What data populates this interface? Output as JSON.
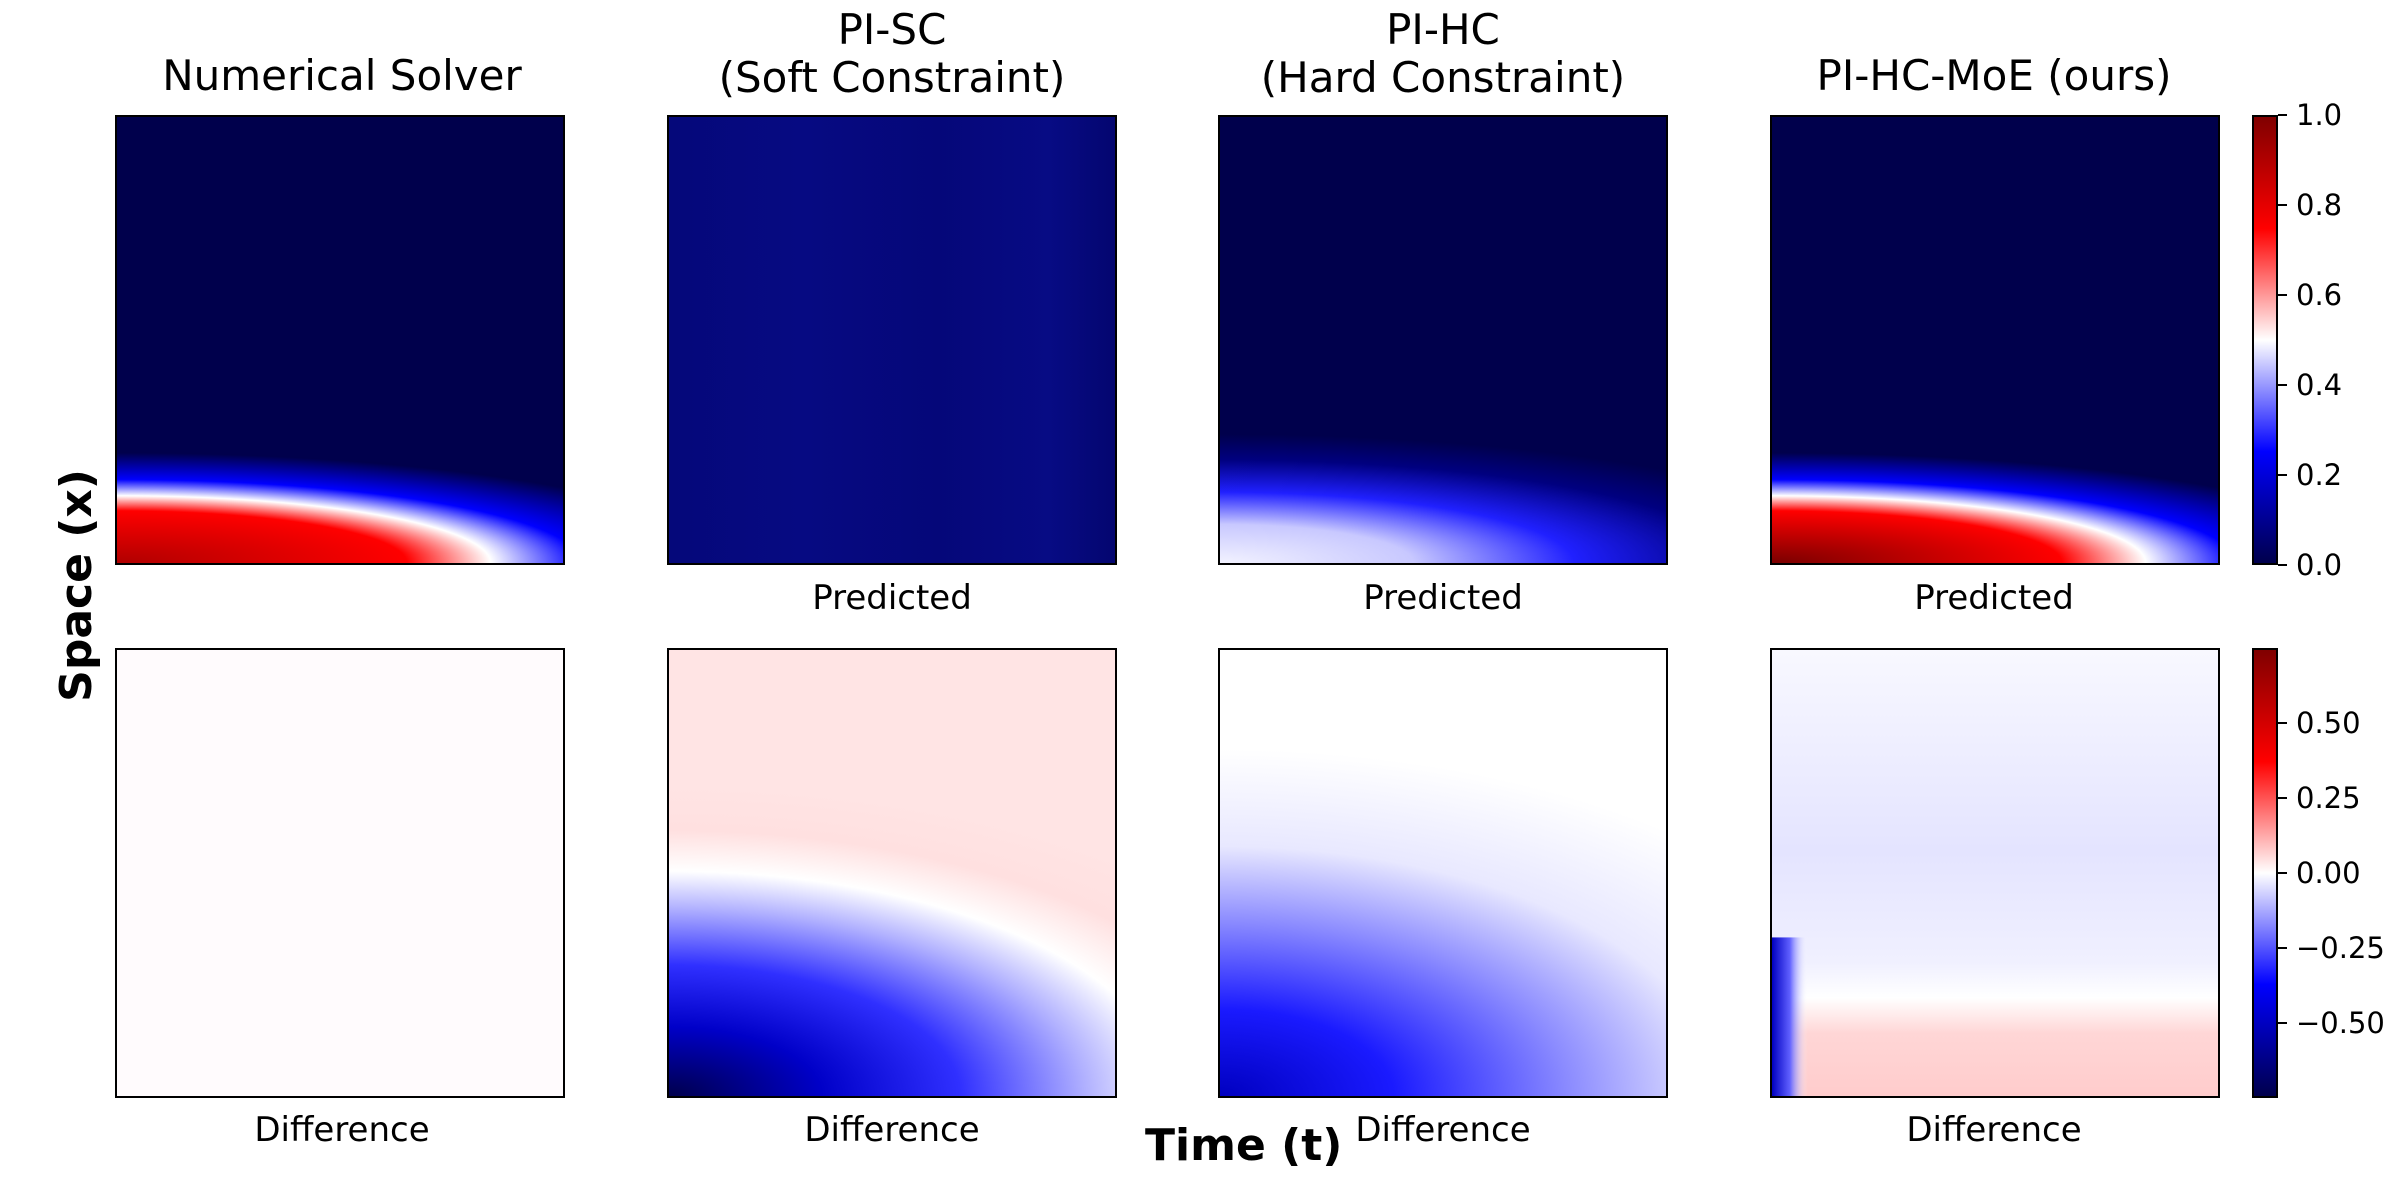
{
  "chart_data": {
    "type": "heatmap",
    "columns": [
      {
        "title_lines": [
          "Numerical Solver"
        ],
        "top_label": "",
        "bottom_label": "Difference"
      },
      {
        "title_lines": [
          "PI-SC",
          "(Soft Constraint)"
        ],
        "top_label": "Predicted",
        "bottom_label": "Difference"
      },
      {
        "title_lines": [
          "PI-HC",
          "(Hard Constraint)"
        ],
        "top_label": "Predicted",
        "bottom_label": "Difference"
      },
      {
        "title_lines": [
          "PI-HC-MoE (ours)"
        ],
        "top_label": "Predicted",
        "bottom_label": "Difference"
      }
    ],
    "xlabel": "Time (t)",
    "ylabel": "Space (x)",
    "colormap": [
      "#00004c",
      "#0000ff",
      "#ffffff",
      "#ff0000",
      "#800000"
    ],
    "prediction_colorbar": {
      "range": [
        0.0,
        1.0
      ],
      "ticks": [
        "0.0",
        "0.2",
        "0.4",
        "0.6",
        "0.8",
        "1.0"
      ]
    },
    "difference_colorbar": {
      "range": [
        -0.75,
        0.75
      ],
      "ticks": [
        "−0.50",
        "−0.25",
        "0.00",
        "0.25",
        "0.50"
      ]
    }
  }
}
